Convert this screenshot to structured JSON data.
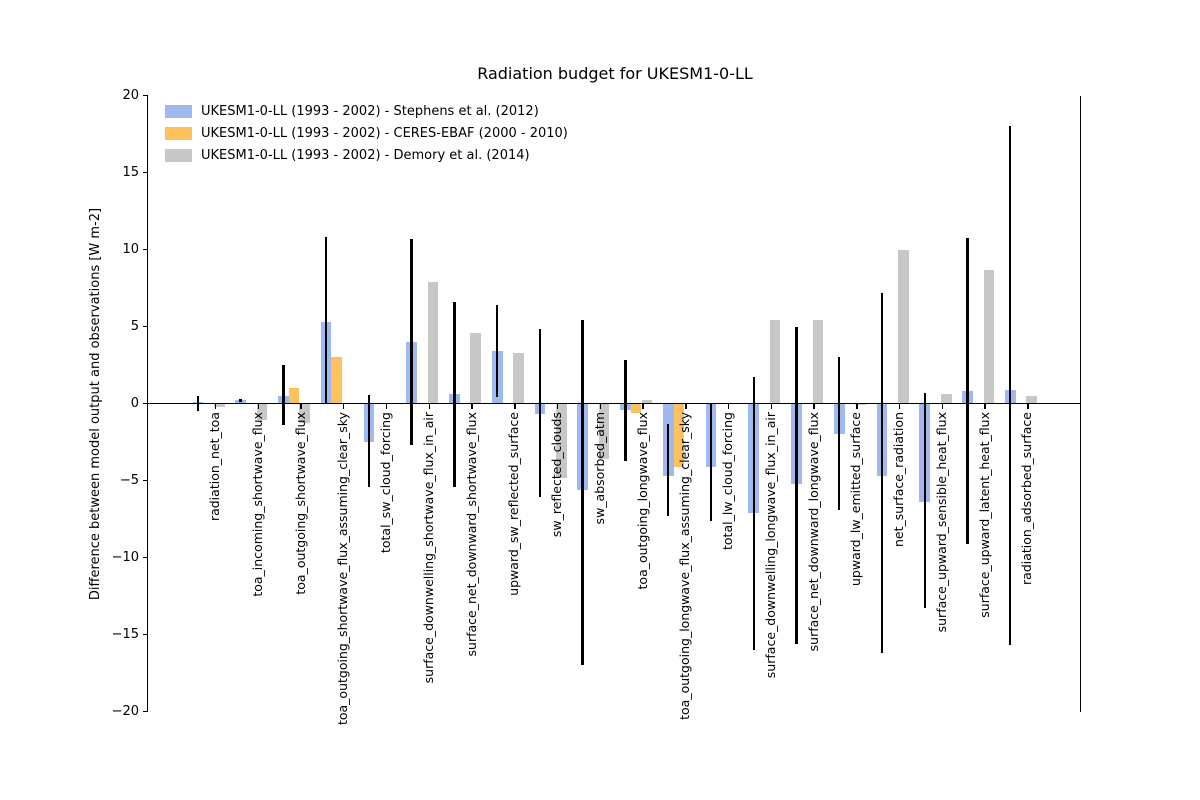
{
  "chart_data": {
    "type": "bar",
    "title": "Radiation budget for UKESM1-0-LL",
    "ylabel": "Difference between model output and observations [W m-2]",
    "xlabel": "",
    "ylim": [
      -20,
      20
    ],
    "yticks": [
      20,
      15,
      10,
      5,
      0,
      -5,
      -10,
      -15,
      -20
    ],
    "grid": false,
    "legend_position": "upper left",
    "categories": [
      "radiation_net_toa",
      "toa_incoming_shortwave_flux",
      "toa_outgoing_shortwave_flux",
      "toa_outgoing_shortwave_flux_assuming_clear_sky",
      "total_sw_cloud_forcing",
      "surface_downwelling_shortwave_flux_in_air",
      "surface_net_downward_shortwave_flux",
      "upward_sw_reflected_surface",
      "sw_reflected_clouds",
      "sw_absorbed_atm",
      "toa_outgoing_longwave_flux",
      "toa_outgoing_longwave_flux_assuming_clear_sky",
      "total_lw_cloud_forcing",
      "surface_downwelling_longwave_flux_in_air",
      "surface_net_downward_longwave_flux",
      "upward_lw_emitted_surface",
      "net_surface_radiation",
      "surface_upward_sensible_heat_flux",
      "surface_upward_latent_heat_flux",
      "radiation_adsorbed_surface"
    ],
    "series": [
      {
        "name": "UKESM1-0-LL (1993 - 2002) - Stephens et al. (2012)",
        "color": "#9db9ee",
        "values": [
          0.1,
          0.25,
          0.5,
          5.3,
          -2.5,
          4.0,
          0.6,
          3.4,
          -0.7,
          -5.6,
          -0.45,
          -4.7,
          -4.1,
          -7.1,
          -5.25,
          -1.95,
          -4.7,
          -6.4,
          0.8,
          0.9
        ]
      },
      {
        "name": "UKESM1-0-LL (1993 - 2002) - CERES-EBAF (2000 - 2010)",
        "color": "#fdc15e",
        "values": [
          null,
          null,
          1.0,
          3.0,
          null,
          null,
          null,
          null,
          null,
          null,
          -0.6,
          -4.1,
          null,
          null,
          null,
          null,
          null,
          null,
          null,
          null
        ]
      },
      {
        "name": "UKESM1-0-LL (1993 - 2002) - Demory et al. (2014)",
        "color": "#c7c7c7",
        "values": [
          -0.25,
          -1.1,
          -1.25,
          null,
          null,
          7.9,
          4.55,
          3.3,
          -4.85,
          -3.6,
          0.25,
          null,
          null,
          5.4,
          5.4,
          -0.1,
          10.0,
          0.6,
          8.7,
          0.5
        ]
      }
    ],
    "error_bars": {
      "color": "#000000",
      "note": "observation uncertainty range [upper, lower] in W m-2, drawn centered on first series bar",
      "ranges": [
        [
          0.5,
          -0.5
        ],
        [
          0.3,
          0.1
        ],
        [
          2.5,
          -1.4
        ],
        [
          10.8,
          0.0
        ],
        [
          0.55,
          -5.4
        ],
        [
          10.7,
          -2.7
        ],
        [
          6.6,
          -5.4
        ],
        [
          6.4,
          0.45
        ],
        [
          4.85,
          -6.1
        ],
        [
          5.45,
          -17.0
        ],
        [
          2.8,
          -3.75
        ],
        [
          -1.3,
          -7.3
        ],
        [
          0.0,
          -7.6
        ],
        [
          1.75,
          -16.0
        ],
        [
          4.95,
          -15.6
        ],
        [
          3.0,
          -6.9
        ],
        [
          7.2,
          -16.2
        ],
        [
          0.65,
          -13.3
        ],
        [
          10.75,
          -9.1
        ],
        [
          18.0,
          -15.7
        ]
      ]
    }
  }
}
